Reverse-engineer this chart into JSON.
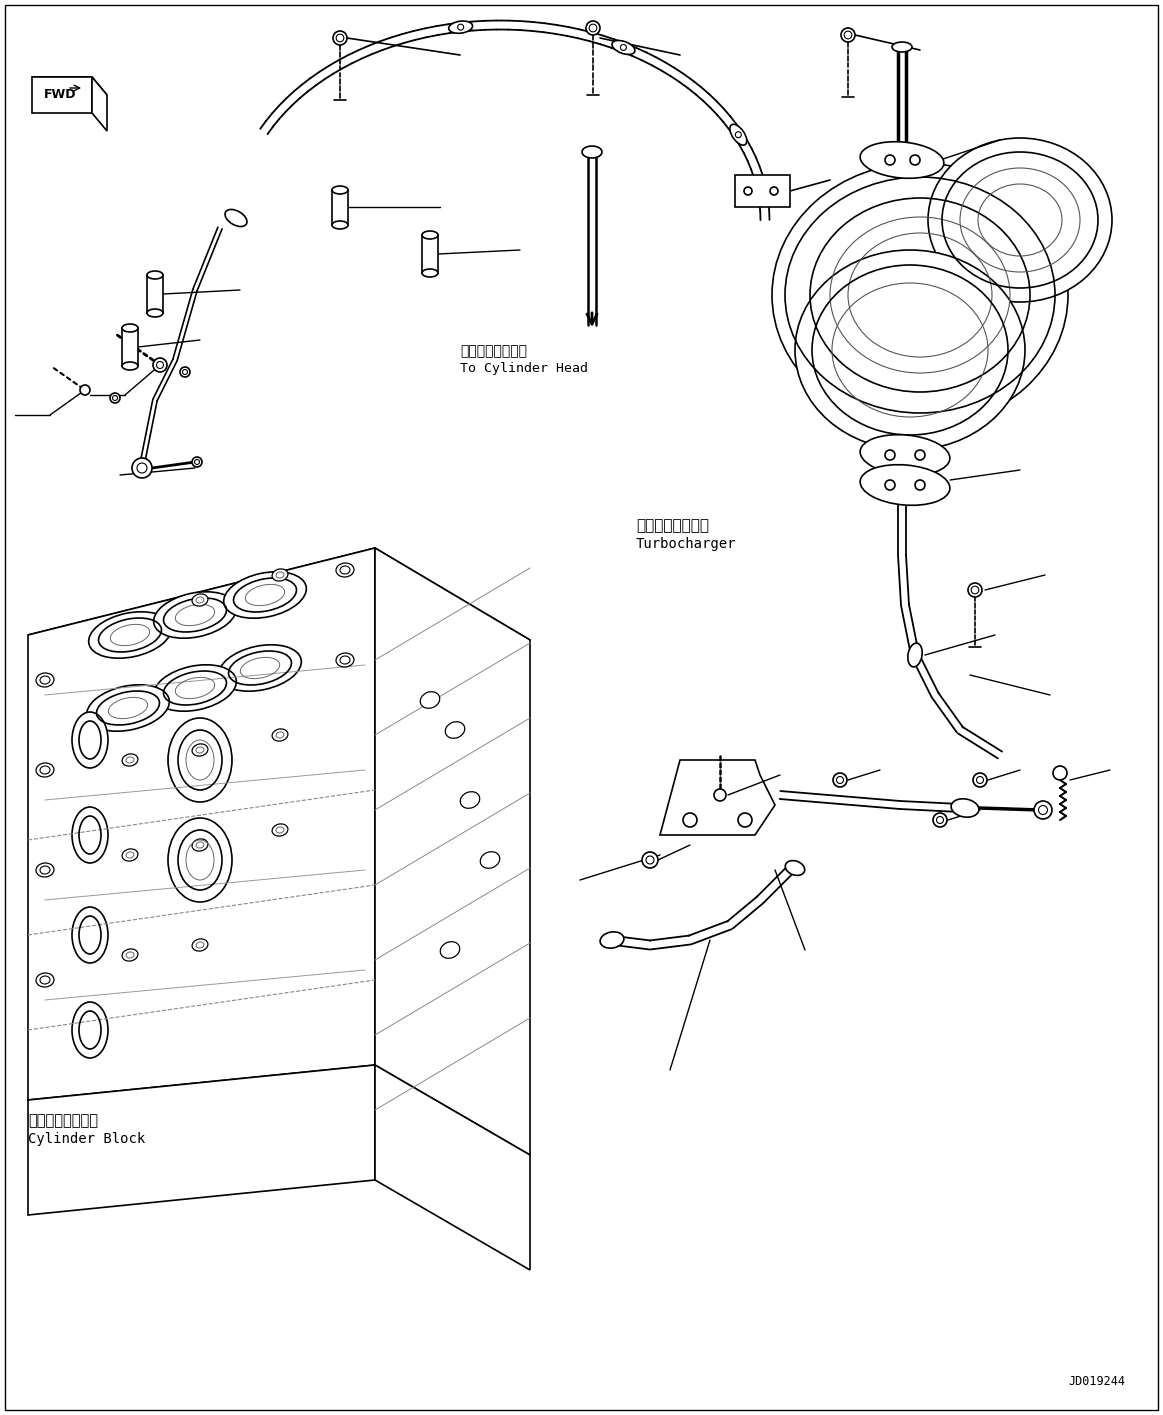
{
  "background_color": "#ffffff",
  "line_color": "#000000",
  "part_id": "JD019244",
  "fwd_label": "FWD",
  "cyl_head_ja": "シリンダヘッドへ",
  "cyl_head_en": "To Cylinder Head",
  "turbo_ja": "ターボチャージャ",
  "turbo_en": "Turbocharger",
  "block_ja": "シリンダブロック",
  "block_en": "Cylinder Block"
}
